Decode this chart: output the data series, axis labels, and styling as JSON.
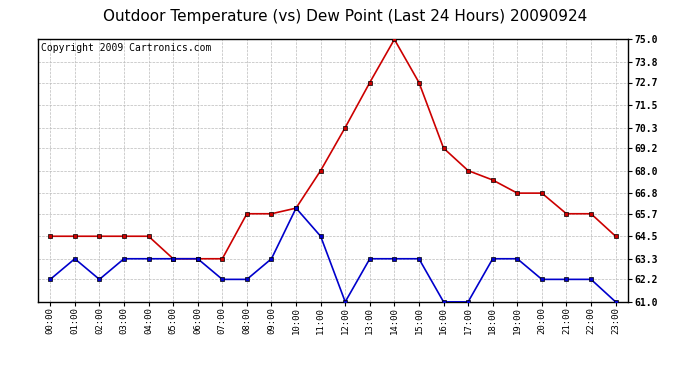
{
  "title": "Outdoor Temperature (vs) Dew Point (Last 24 Hours) 20090924",
  "copyright": "Copyright 2009 Cartronics.com",
  "x_labels": [
    "00:00",
    "01:00",
    "02:00",
    "03:00",
    "04:00",
    "05:00",
    "06:00",
    "07:00",
    "08:00",
    "09:00",
    "10:00",
    "11:00",
    "12:00",
    "13:00",
    "14:00",
    "15:00",
    "16:00",
    "17:00",
    "18:00",
    "19:00",
    "20:00",
    "21:00",
    "22:00",
    "23:00"
  ],
  "temp_values": [
    64.5,
    64.5,
    64.5,
    64.5,
    64.5,
    63.3,
    63.3,
    63.3,
    65.7,
    65.7,
    66.0,
    68.0,
    70.3,
    72.7,
    75.0,
    72.7,
    69.2,
    68.0,
    67.5,
    66.8,
    66.8,
    65.7,
    65.7,
    64.5
  ],
  "dew_values": [
    62.2,
    63.3,
    62.2,
    63.3,
    63.3,
    63.3,
    63.3,
    62.2,
    62.2,
    63.3,
    66.0,
    64.5,
    61.0,
    63.3,
    63.3,
    63.3,
    61.0,
    61.0,
    63.3,
    63.3,
    62.2,
    62.2,
    62.2,
    61.0
  ],
  "temp_color": "#cc0000",
  "dew_color": "#0000cc",
  "yticks": [
    61.0,
    62.2,
    63.3,
    64.5,
    65.7,
    66.8,
    68.0,
    69.2,
    70.3,
    71.5,
    72.7,
    73.8,
    75.0
  ],
  "ymin": 61.0,
  "ymax": 75.0,
  "bg_color": "#ffffff",
  "grid_color": "#bbbbbb",
  "title_fontsize": 11,
  "copyright_fontsize": 7,
  "marker": "s",
  "marker_size": 3,
  "line_width": 1.2
}
